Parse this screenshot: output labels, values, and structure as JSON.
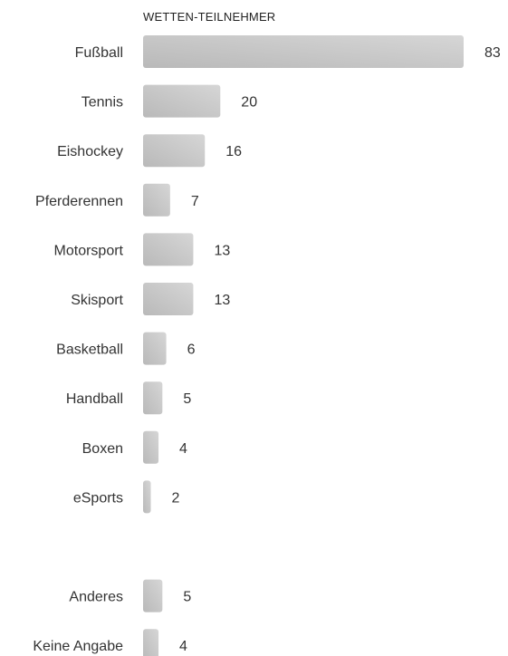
{
  "chart_data": {
    "type": "bar",
    "orientation": "horizontal",
    "title": "WETTEN-TEILNEHMER",
    "categories": [
      "Fußball",
      "Tennis",
      "Eishockey",
      "Pferderennen",
      "Motorsport",
      "Skisport",
      "Basketball",
      "Handball",
      "Boxen",
      "eSports",
      "Anderes",
      "Keine Angabe"
    ],
    "values": [
      83,
      20,
      16,
      7,
      13,
      13,
      6,
      5,
      4,
      2,
      5,
      4
    ],
    "group_break_before": "Anderes",
    "xlabel": "",
    "ylabel": "",
    "xlim": [
      0,
      83
    ],
    "grid": false,
    "legend": "none",
    "bar_color_start": "#bdbdbd",
    "bar_color_end": "#d4d4d4"
  }
}
